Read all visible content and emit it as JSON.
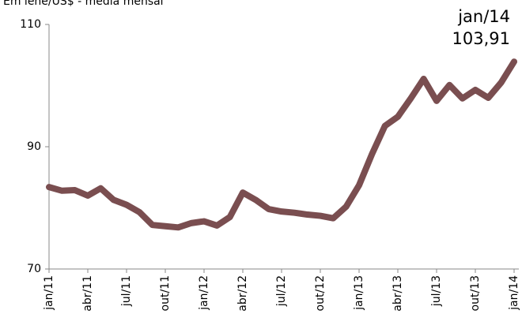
{
  "chart_data": {
    "type": "line",
    "subtitle": "Em iene/US$ - média mensal",
    "categories": [
      "jan/11",
      null,
      null,
      "abr/11",
      null,
      null,
      "jul/11",
      null,
      null,
      "out/11",
      null,
      null,
      "jan/12",
      null,
      null,
      "abr/12",
      null,
      null,
      "jul/12",
      null,
      null,
      "out/12",
      null,
      null,
      "jan/13",
      null,
      null,
      "abr/13",
      null,
      null,
      "jul/13",
      null,
      null,
      "out/13",
      null,
      null,
      "jan/14"
    ],
    "series": [
      {
        "name": "iene/US$",
        "color": "#7a4e50",
        "values": [
          83.4,
          82.8,
          82.9,
          82.0,
          83.2,
          81.3,
          80.5,
          79.3,
          77.2,
          77.0,
          76.8,
          77.5,
          77.8,
          77.1,
          78.5,
          82.5,
          81.3,
          79.8,
          79.4,
          79.2,
          78.9,
          78.7,
          78.3,
          80.2,
          83.7,
          88.8,
          93.4,
          94.9,
          97.9,
          101.1,
          97.5,
          100.1,
          97.9,
          99.3,
          98.0,
          100.5,
          103.91
        ],
        "value_labels": [
          null,
          null,
          null,
          null,
          null,
          null,
          null,
          null,
          null,
          null,
          null,
          null,
          null,
          null,
          null,
          null,
          null,
          null,
          null,
          null,
          null,
          null,
          null,
          null,
          null,
          null,
          null,
          null,
          null,
          null,
          null,
          null,
          null,
          null,
          null,
          null,
          "103,91"
        ]
      }
    ],
    "annotation": "jan/14",
    "ylim": [
      70,
      110
    ],
    "yticks": [
      70,
      90,
      110
    ]
  }
}
